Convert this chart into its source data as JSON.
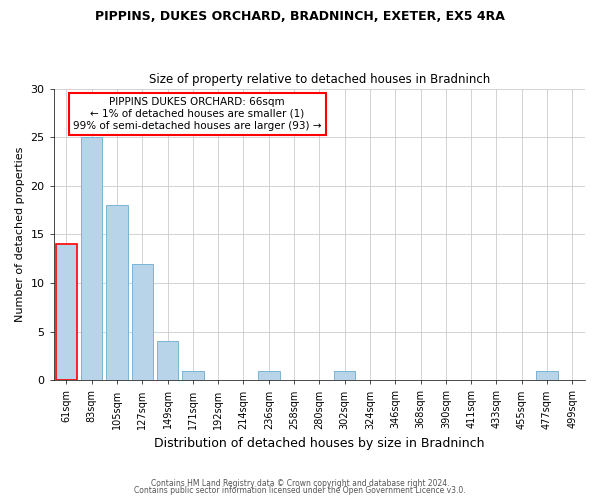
{
  "title": "PIPPINS, DUKES ORCHARD, BRADNINCH, EXETER, EX5 4RA",
  "subtitle": "Size of property relative to detached houses in Bradninch",
  "xlabel": "Distribution of detached houses by size in Bradninch",
  "ylabel": "Number of detached properties",
  "bar_labels": [
    "61sqm",
    "83sqm",
    "105sqm",
    "127sqm",
    "149sqm",
    "171sqm",
    "192sqm",
    "214sqm",
    "236sqm",
    "258sqm",
    "280sqm",
    "302sqm",
    "324sqm",
    "346sqm",
    "368sqm",
    "390sqm",
    "411sqm",
    "433sqm",
    "455sqm",
    "477sqm",
    "499sqm"
  ],
  "bar_values": [
    14,
    25,
    18,
    12,
    4,
    1,
    0,
    0,
    1,
    0,
    0,
    1,
    0,
    0,
    0,
    0,
    0,
    0,
    0,
    1,
    0
  ],
  "bar_color": "#b8d4e8",
  "bar_edge_color": "#7ab4d4",
  "highlight_bar_index": 0,
  "highlight_edge_color": "red",
  "annotation_title": "PIPPINS DUKES ORCHARD: 66sqm",
  "annotation_line1": "← 1% of detached houses are smaller (1)",
  "annotation_line2": "99% of semi-detached houses are larger (93) →",
  "annotation_box_color": "white",
  "annotation_box_edge_color": "red",
  "ylim": [
    0,
    30
  ],
  "yticks": [
    0,
    5,
    10,
    15,
    20,
    25,
    30
  ],
  "footer1": "Contains HM Land Registry data © Crown copyright and database right 2024.",
  "footer2": "Contains public sector information licensed under the Open Government Licence v3.0."
}
